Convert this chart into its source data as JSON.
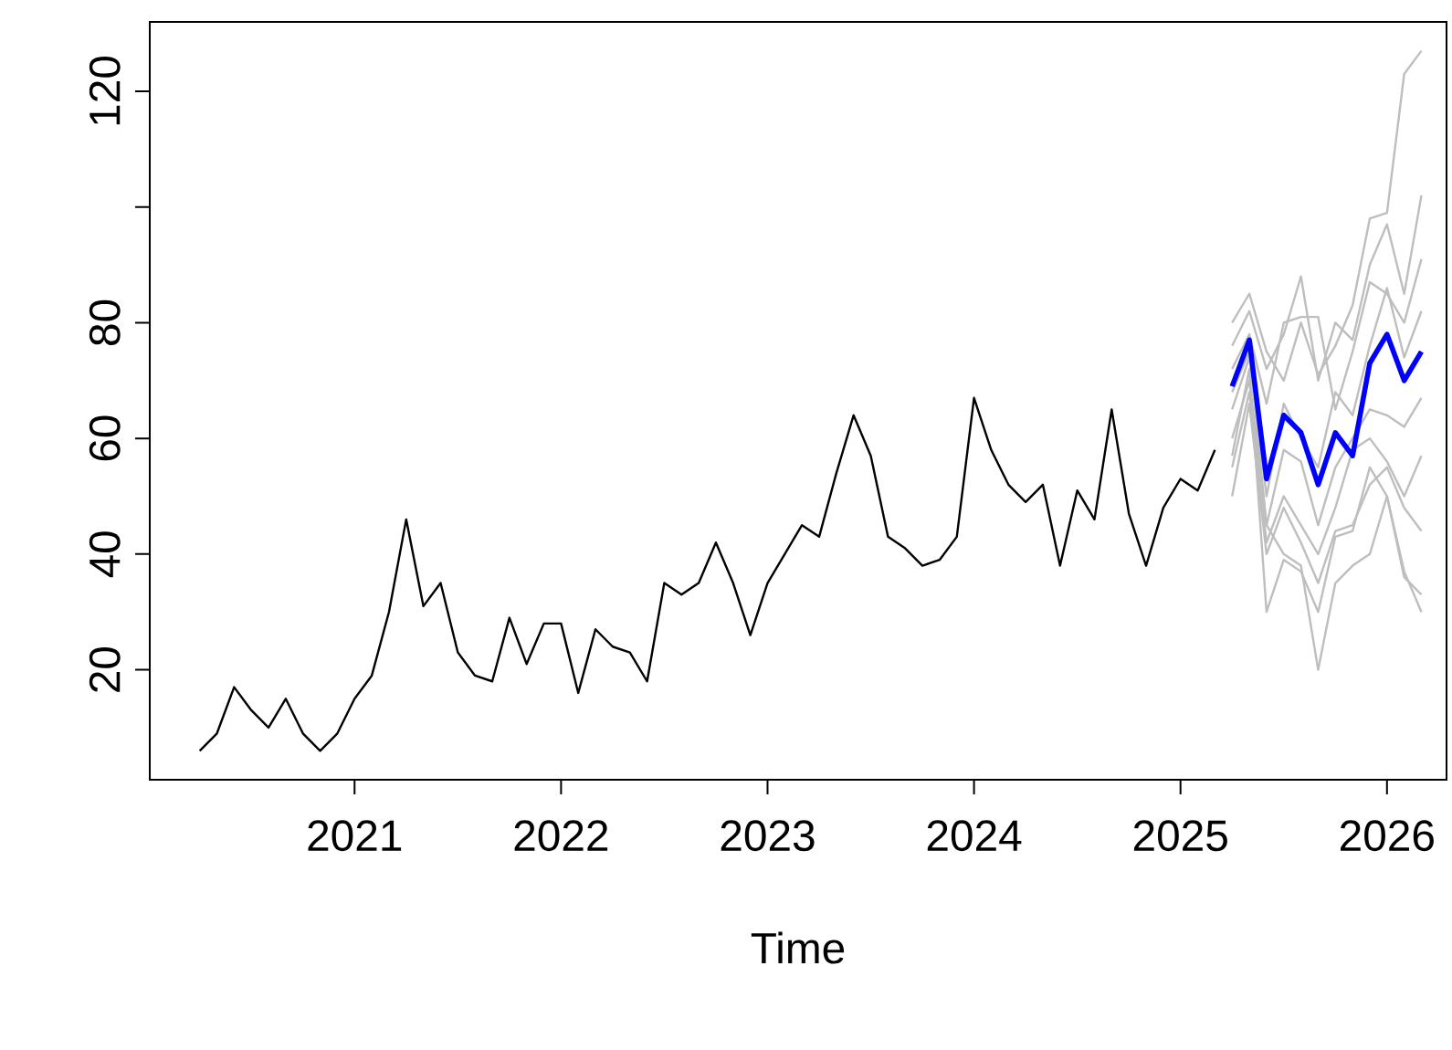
{
  "chart_data": {
    "type": "line",
    "xlabel": "Time",
    "xlim": [
      "2020-01-04",
      "2026-04-15"
    ],
    "ylim": [
      1,
      132
    ],
    "xticks": [
      "2021",
      "2022",
      "2023",
      "2024",
      "2025",
      "2026"
    ],
    "yticks": [
      20,
      40,
      60,
      80,
      {
        "value": 100,
        "label": null
      },
      120
    ],
    "grid": false,
    "marker": "none",
    "line_style": "solid",
    "series": [
      {
        "color": "#000000",
        "x": [
          "2020-04",
          "2020-05",
          "2020-06",
          "2020-07",
          "2020-08",
          "2020-09",
          "2020-10",
          "2020-11",
          "2020-12",
          "2021-01",
          "2021-02",
          "2021-03",
          "2021-04",
          "2021-05",
          "2021-06",
          "2021-07",
          "2021-08",
          "2021-09",
          "2021-10",
          "2021-11",
          "2021-12",
          "2022-01",
          "2022-02",
          "2022-03",
          "2022-04",
          "2022-05",
          "2022-06",
          "2022-07",
          "2022-08",
          "2022-09",
          "2022-10",
          "2022-11",
          "2022-12",
          "2023-01",
          "2023-02",
          "2023-03",
          "2023-04",
          "2023-05",
          "2023-06",
          "2023-07",
          "2023-08",
          "2023-09",
          "2023-10",
          "2023-11",
          "2023-12",
          "2024-01",
          "2024-02",
          "2024-03",
          "2024-04",
          "2024-05",
          "2024-06",
          "2024-07",
          "2024-08",
          "2024-09",
          "2024-10",
          "2024-11",
          "2024-12",
          "2025-01",
          "2025-02",
          "2025-03"
        ],
        "values": [
          6,
          9,
          17,
          13,
          10,
          15,
          9,
          6,
          9,
          15,
          19,
          30,
          46,
          31,
          35,
          23,
          19,
          18,
          29,
          21,
          28,
          28,
          16,
          27,
          24,
          23,
          18,
          35,
          33,
          35,
          42,
          35,
          26,
          35,
          40,
          45,
          43,
          54,
          64,
          57,
          43,
          41,
          38,
          39,
          43,
          67,
          58,
          52,
          49,
          52,
          38,
          51,
          46,
          65,
          47,
          38,
          48,
          53,
          51,
          58
        ]
      },
      {
        "color": "#bebebe",
        "x": [
          "2025-04",
          "2025-05",
          "2025-06",
          "2025-07",
          "2025-08",
          "2025-09",
          "2025-10",
          "2025-11",
          "2025-12",
          "2026-01",
          "2026-02",
          "2026-03"
        ],
        "values": [
          80,
          85,
          75,
          70,
          80,
          71,
          76,
          83,
          98,
          99,
          123,
          127
        ]
      },
      {
        "color": "#bebebe",
        "x": [
          "2025-04",
          "2025-05",
          "2025-06",
          "2025-07",
          "2025-08",
          "2025-09",
          "2025-10",
          "2025-11",
          "2025-12",
          "2026-01",
          "2026-02",
          "2026-03"
        ],
        "values": [
          76,
          82,
          72,
          78,
          88,
          70,
          80,
          77,
          90,
          97,
          85,
          102
        ]
      },
      {
        "color": "#bebebe",
        "x": [
          "2025-04",
          "2025-05",
          "2025-06",
          "2025-07",
          "2025-08",
          "2025-09",
          "2025-10",
          "2025-11",
          "2025-12",
          "2026-01",
          "2026-02",
          "2026-03"
        ],
        "values": [
          72,
          78,
          66,
          80,
          81,
          81,
          65,
          75,
          87,
          85,
          80,
          91
        ]
      },
      {
        "color": "#bebebe",
        "x": [
          "2025-04",
          "2025-05",
          "2025-06",
          "2025-07",
          "2025-08",
          "2025-09",
          "2025-10",
          "2025-11",
          "2025-12",
          "2026-01",
          "2026-02",
          "2026-03"
        ],
        "values": [
          65,
          74,
          50,
          66,
          60,
          55,
          68,
          64,
          76,
          86,
          74,
          82
        ]
      },
      {
        "color": "#bebebe",
        "x": [
          "2025-04",
          "2025-05",
          "2025-06",
          "2025-07",
          "2025-08",
          "2025-09",
          "2025-10",
          "2025-11",
          "2025-12",
          "2026-01",
          "2026-02",
          "2026-03"
        ],
        "values": [
          60,
          70,
          45,
          58,
          56,
          45,
          55,
          60,
          65,
          64,
          62,
          67
        ]
      },
      {
        "color": "#bebebe",
        "x": [
          "2025-04",
          "2025-05",
          "2025-06",
          "2025-07",
          "2025-08",
          "2025-09",
          "2025-10",
          "2025-11",
          "2025-12",
          "2026-01",
          "2026-02",
          "2026-03"
        ],
        "values": [
          55,
          68,
          42,
          50,
          45,
          40,
          48,
          58,
          60,
          56,
          50,
          57
        ]
      },
      {
        "color": "#bebebe",
        "x": [
          "2025-04",
          "2025-05",
          "2025-06",
          "2025-07",
          "2025-08",
          "2025-09",
          "2025-10",
          "2025-11",
          "2025-12",
          "2026-01",
          "2026-02",
          "2026-03"
        ],
        "values": [
          50,
          66,
          40,
          48,
          42,
          35,
          44,
          45,
          52,
          55,
          48,
          44
        ]
      },
      {
        "color": "#bebebe",
        "x": [
          "2025-04",
          "2025-05",
          "2025-06",
          "2025-07",
          "2025-08",
          "2025-09",
          "2025-10",
          "2025-11",
          "2025-12",
          "2026-01",
          "2026-02",
          "2026-03"
        ],
        "values": [
          57,
          72,
          30,
          39,
          37,
          30,
          43,
          44,
          55,
          50,
          37,
          30
        ]
      },
      {
        "color": "#bebebe",
        "x": [
          "2025-04",
          "2025-05",
          "2025-06",
          "2025-07",
          "2025-08",
          "2025-09",
          "2025-10",
          "2025-11",
          "2025-12",
          "2026-01",
          "2026-02",
          "2026-03"
        ],
        "values": [
          68,
          75,
          45,
          40,
          38,
          20,
          35,
          38,
          40,
          50,
          36,
          33
        ]
      },
      {
        "color": "#0000ff",
        "x": [
          "2025-04",
          "2025-05",
          "2025-06",
          "2025-07",
          "2025-08",
          "2025-09",
          "2025-10",
          "2025-11",
          "2025-12",
          "2026-01",
          "2026-02",
          "2026-03"
        ],
        "values": [
          69,
          77,
          53,
          64,
          61,
          52,
          61,
          57,
          73,
          78,
          70,
          75
        ]
      }
    ]
  }
}
